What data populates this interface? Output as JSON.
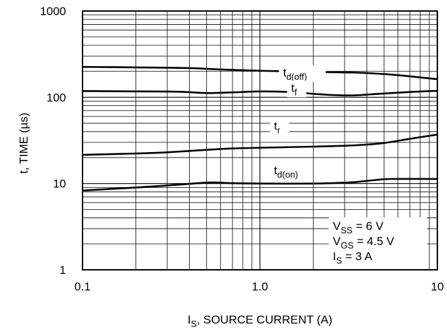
{
  "chart_data": {
    "type": "line",
    "x_scale": "log",
    "y_scale": "log",
    "xlim": [
      0.1,
      10
    ],
    "ylim": [
      1,
      1000
    ],
    "grid": true,
    "xlabel": {
      "main": "I",
      "sub": "S",
      "rest": ", SOURCE CURRENT (A)"
    },
    "ylabel": "t, TIME (µs)",
    "x_ticks": [
      {
        "value": 0.1,
        "label": "0.1"
      },
      {
        "value": 1,
        "label": "1.0"
      },
      {
        "value": 10,
        "label": "10"
      }
    ],
    "y_ticks": [
      {
        "value": 1,
        "label": "1"
      },
      {
        "value": 10,
        "label": "10"
      },
      {
        "value": 100,
        "label": "100"
      },
      {
        "value": 1000,
        "label": "1000"
      }
    ],
    "series": [
      {
        "name": "td(off)",
        "label_main": "t",
        "label_sub": "d(off)",
        "x": [
          0.1,
          0.2,
          0.4,
          0.6,
          1.0,
          2.0,
          3.5,
          5.0,
          7.0,
          10
        ],
        "y": [
          225,
          222,
          218,
          210,
          203,
          197,
          193,
          186,
          175,
          162
        ]
      },
      {
        "name": "tf",
        "label_main": "t",
        "label_sub": "f",
        "x": [
          0.1,
          0.2,
          0.35,
          0.5,
          0.7,
          1.0,
          1.5,
          2.2,
          3.2,
          4.5,
          7.0,
          10
        ],
        "y": [
          118,
          117,
          116,
          112,
          114,
          117,
          115,
          108,
          105,
          109,
          115,
          119
        ]
      },
      {
        "name": "tr",
        "label_main": "t",
        "label_sub": "r",
        "x": [
          0.1,
          0.2,
          0.3,
          0.5,
          0.7,
          1.0,
          2.0,
          3.5,
          5.0,
          7.0,
          10
        ],
        "y": [
          21.5,
          22.3,
          23.0,
          24.6,
          25.5,
          26.0,
          26.8,
          27.8,
          29.5,
          33.0,
          37.0
        ]
      },
      {
        "name": "td(on)",
        "label_main": "t",
        "label_sub": "d(on)",
        "x": [
          0.1,
          0.2,
          0.3,
          0.45,
          0.55,
          0.7,
          1.0,
          2.0,
          3.2,
          4.5,
          5.5,
          10
        ],
        "y": [
          8.3,
          9.0,
          9.5,
          10.1,
          10.3,
          10.1,
          10.0,
          10.0,
          10.3,
          11.0,
          11.3,
          11.3
        ]
      }
    ],
    "conditions": [
      {
        "main": "V",
        "sub": "SS",
        "rest": " = 6 V"
      },
      {
        "main": "V",
        "sub": "GS",
        "rest": " = 4.5 V"
      },
      {
        "main": "I",
        "sub": "S",
        "rest": " = 3 A"
      }
    ]
  }
}
